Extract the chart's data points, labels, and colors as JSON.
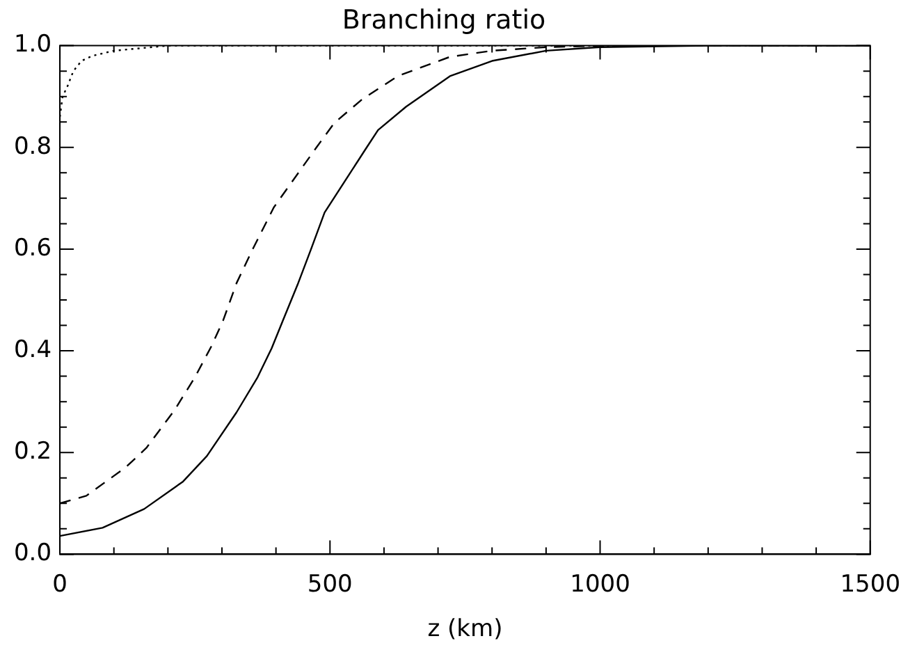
{
  "chart_data": {
    "type": "line",
    "title": "Branching ratio",
    "xlabel": "z (km)",
    "xlim": [
      0,
      1500
    ],
    "ylim": [
      0,
      1
    ],
    "xticks": [
      0,
      {
        "value": 100,
        "label": null
      },
      {
        "value": 200,
        "label": null
      },
      {
        "value": 300,
        "label": null
      },
      {
        "value": 400,
        "label": null
      },
      500,
      {
        "value": 600,
        "label": null
      },
      {
        "value": 700,
        "label": null
      },
      {
        "value": 800,
        "label": null
      },
      {
        "value": 900,
        "label": null
      },
      1000,
      {
        "value": 1100,
        "label": null
      },
      {
        "value": 1200,
        "label": null
      },
      {
        "value": 1300,
        "label": null
      },
      {
        "value": 1400,
        "label": null
      },
      1500
    ],
    "yticks": [
      {
        "value": 0,
        "label": "0.0"
      },
      {
        "value": 0.05,
        "label": null
      },
      {
        "value": 0.1,
        "label": null
      },
      {
        "value": 0.15,
        "label": null
      },
      {
        "value": 0.2,
        "label": "0.2"
      },
      {
        "value": 0.25,
        "label": null
      },
      {
        "value": 0.3,
        "label": null
      },
      {
        "value": 0.35,
        "label": null
      },
      {
        "value": 0.4,
        "label": "0.4"
      },
      {
        "value": 0.45,
        "label": null
      },
      {
        "value": 0.5,
        "label": null
      },
      {
        "value": 0.55,
        "label": null
      },
      {
        "value": 0.6,
        "label": "0.6"
      },
      {
        "value": 0.65,
        "label": null
      },
      {
        "value": 0.7,
        "label": null
      },
      {
        "value": 0.75,
        "label": null
      },
      {
        "value": 0.8,
        "label": "0.8"
      },
      {
        "value": 0.85,
        "label": null
      },
      {
        "value": 0.9,
        "label": null
      },
      {
        "value": 0.95,
        "label": null
      },
      {
        "value": 1,
        "label": "1.0"
      }
    ],
    "grid": false,
    "legend": false,
    "marker": "none",
    "series": [
      {
        "color": "#000000",
        "line_style": "solid",
        "x": [
          0,
          79,
          156,
          228,
          272,
          327,
          366,
          392,
          413,
          440,
          465,
          490,
          568,
          589,
          641,
          722,
          800,
          900,
          1000,
          1200,
          1500
        ],
        "values": [
          0.036,
          0.052,
          0.089,
          0.143,
          0.193,
          0.279,
          0.348,
          0.405,
          0.46,
          0.53,
          0.6,
          0.672,
          0.8,
          0.834,
          0.88,
          0.94,
          0.97,
          0.99,
          0.997,
          1,
          1
        ]
      },
      {
        "color": "#000000",
        "line_style": "dashed",
        "x": [
          0,
          49,
          122,
          160,
          212,
          250,
          280,
          302,
          327,
          357,
          396,
          475,
          508,
          559,
          627,
          722,
          800,
          900,
          1000,
          1200,
          1500
        ],
        "values": [
          0.1,
          0.115,
          0.171,
          0.209,
          0.283,
          0.348,
          0.408,
          0.459,
          0.533,
          0.6,
          0.682,
          0.8,
          0.848,
          0.894,
          0.941,
          0.978,
          0.99,
          0.997,
          1,
          1,
          1
        ]
      },
      {
        "color": "#000000",
        "line_style": "dotted",
        "x": [
          0,
          5,
          14,
          25,
          40,
          60,
          100,
          150,
          200,
          300,
          500,
          1000,
          1500
        ],
        "values": [
          0.86,
          0.9,
          0.92,
          0.95,
          0.97,
          0.98,
          0.99,
          0.995,
          1,
          1,
          1,
          1,
          1
        ]
      }
    ]
  }
}
